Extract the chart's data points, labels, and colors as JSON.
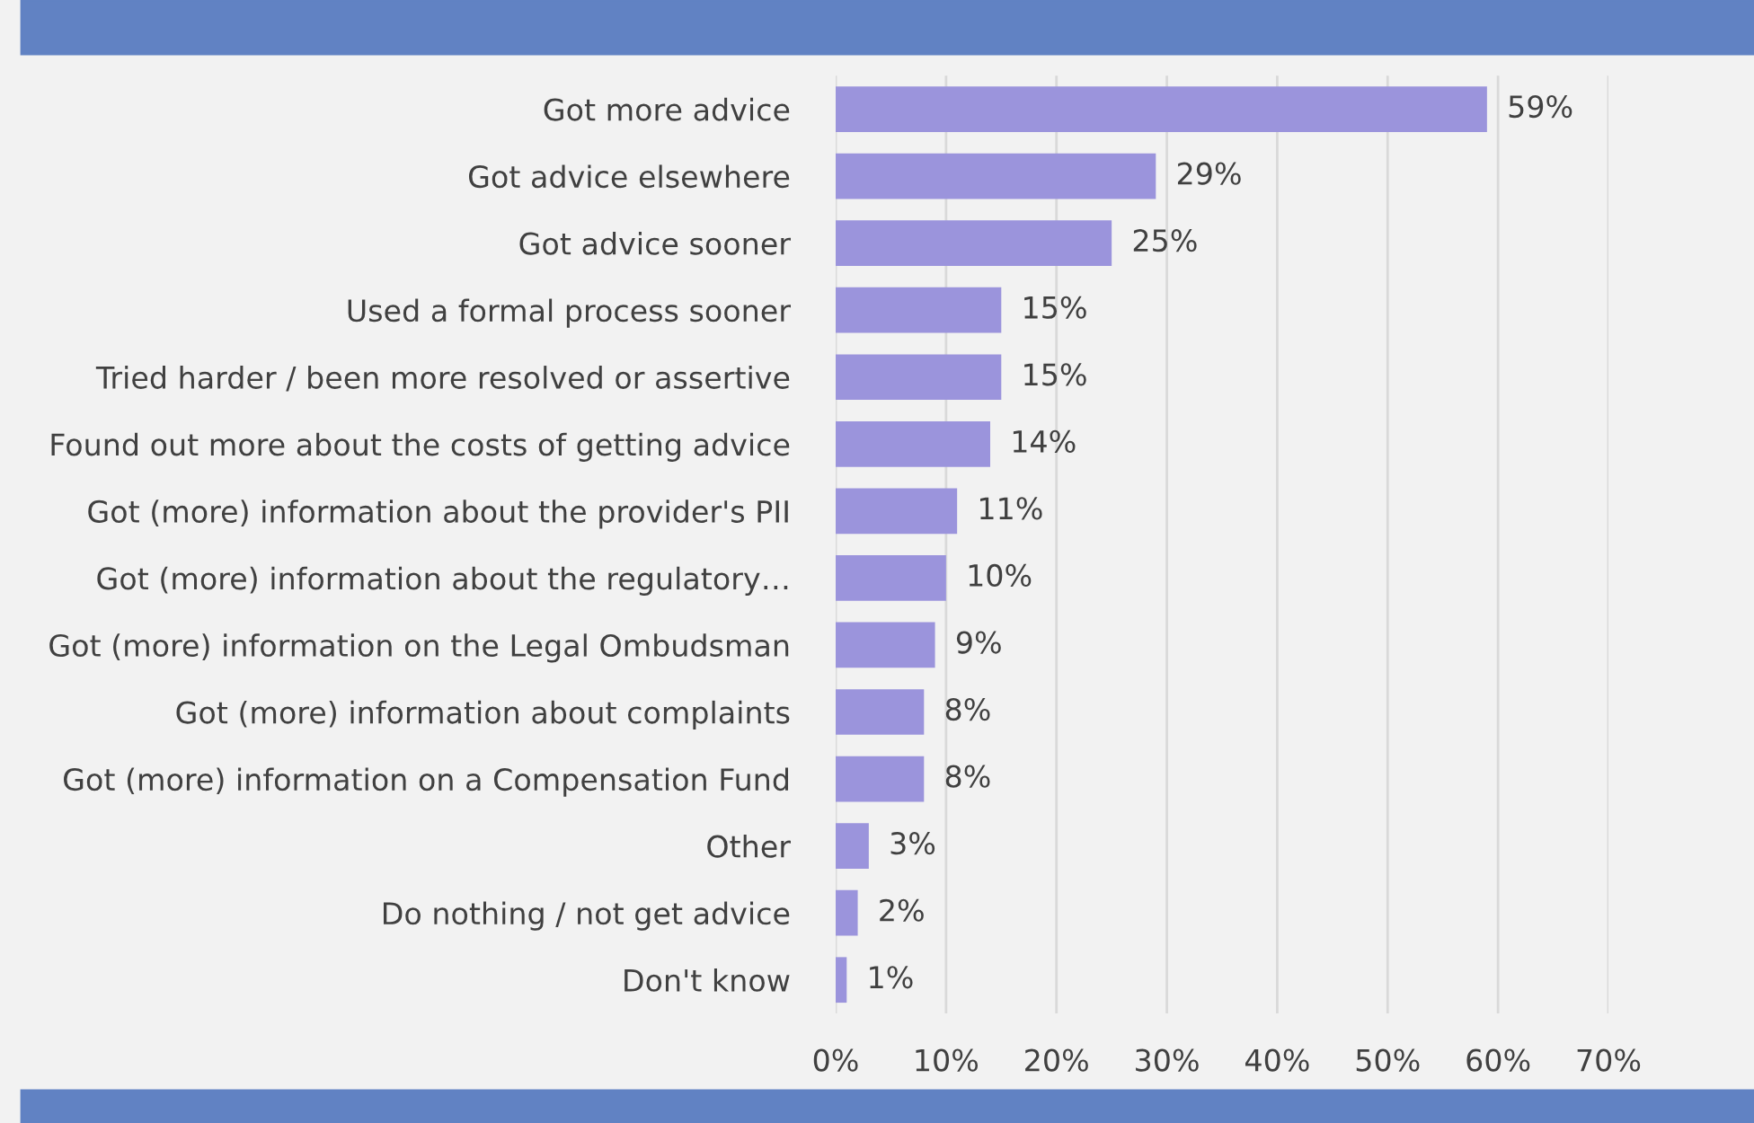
{
  "chart_data": {
    "type": "bar",
    "orientation": "horizontal",
    "categories": [
      "Got more advice",
      "Got advice elsewhere",
      "Got advice sooner",
      "Used a formal process sooner",
      "Tried harder / been more resolved or assertive",
      "Found out more about the costs of getting advice",
      "Got (more) information about the provider's PII",
      "Got (more) information about the regulatory…",
      "Got (more) information on the Legal Ombudsman",
      "Got (more) information about complaints",
      "Got (more) information on a Compensation Fund",
      "Other",
      "Do nothing / not get advice",
      "Don't know"
    ],
    "values": [
      59,
      29,
      25,
      15,
      15,
      14,
      11,
      10,
      9,
      8,
      8,
      3,
      2,
      1
    ],
    "value_labels": [
      "59%",
      "29%",
      "25%",
      "15%",
      "15%",
      "14%",
      "11%",
      "10%",
      "9%",
      "8%",
      "8%",
      "3%",
      "2%",
      "1%"
    ],
    "color": "#9b94dc",
    "xlim": [
      0,
      70
    ],
    "xticks": [
      {
        "value": 0,
        "label": "0%"
      },
      {
        "value": 10,
        "label": "10%"
      },
      {
        "value": 20,
        "label": "20%"
      },
      {
        "value": 30,
        "label": "30%"
      },
      {
        "value": 40,
        "label": "40%"
      },
      {
        "value": 50,
        "label": "50%"
      },
      {
        "value": 60,
        "label": "60%"
      },
      {
        "value": 70,
        "label": "70%"
      }
    ],
    "grid": "x",
    "legend": false
  }
}
